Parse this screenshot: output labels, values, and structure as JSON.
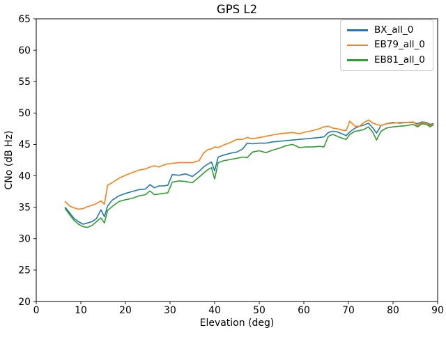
{
  "figure": {
    "background": "#ffffff",
    "text_color": "#000000",
    "spine_color": "#000000",
    "legend_border_color": "#cccccc"
  },
  "chart_data": {
    "type": "line",
    "title": "GPS L2",
    "xlabel": "Elevation (deg)",
    "ylabel": "CNo (dB Hz)",
    "xlim": [
      0,
      90
    ],
    "ylim": [
      20,
      65
    ],
    "xticks": [
      0,
      10,
      20,
      30,
      40,
      50,
      60,
      70,
      80,
      90
    ],
    "yticks": [
      20,
      25,
      30,
      35,
      40,
      45,
      50,
      55,
      60,
      65
    ],
    "grid": false,
    "legend_position": "upper right",
    "x": [
      6.5,
      7.5,
      8.5,
      9.5,
      10.5,
      11.5,
      12.5,
      13.5,
      14.5,
      15.3,
      16,
      17,
      18.5,
      20,
      21.5,
      23,
      24.5,
      25.5,
      26.5,
      27.5,
      28.5,
      29.5,
      30.5,
      32,
      33.5,
      35,
      36.5,
      37.5,
      38.5,
      39.3,
      40,
      40.8,
      42,
      43.5,
      45,
      46.3,
      47.3,
      48.5,
      50,
      51.5,
      53,
      54.5,
      56,
      57.5,
      59,
      60.5,
      62,
      63.5,
      64.5,
      65.5,
      66.5,
      67.5,
      68.5,
      69.5,
      70.3,
      71.5,
      72.5,
      73.5,
      74.5,
      75.5,
      76.3,
      77.3,
      78.5,
      80,
      81.5,
      83,
      84.5,
      85.5,
      86.5,
      87.5,
      88.3,
      89
    ],
    "series": [
      {
        "name": "BX_all_0",
        "color": "#1f77b4",
        "values": [
          35.0,
          34.1,
          33.2,
          32.7,
          32.3,
          32.5,
          32.7,
          33.2,
          34.6,
          33.5,
          35.2,
          36.1,
          36.8,
          37.2,
          37.5,
          37.8,
          37.9,
          38.6,
          38.1,
          38.4,
          38.4,
          38.5,
          40.2,
          40.1,
          40.3,
          39.9,
          40.7,
          41.4,
          41.9,
          42.2,
          40.8,
          43.0,
          43.3,
          43.6,
          43.8,
          44.3,
          45.2,
          45.1,
          45.2,
          45.2,
          45.4,
          45.5,
          45.6,
          45.7,
          45.8,
          45.9,
          46.0,
          46.1,
          46.2,
          46.9,
          47.1,
          47.0,
          46.7,
          46.4,
          47.0,
          47.6,
          47.9,
          48.1,
          48.4,
          47.6,
          46.8,
          48.0,
          48.3,
          48.5,
          48.4,
          48.5,
          48.5,
          48.3,
          48.6,
          48.5,
          48.2,
          48.3
        ]
      },
      {
        "name": "EB79_all_0",
        "color": "#ff7f0e",
        "values": [
          35.9,
          35.2,
          34.9,
          34.7,
          34.8,
          35.1,
          35.3,
          35.6,
          36.0,
          35.5,
          38.5,
          38.9,
          39.6,
          40.1,
          40.5,
          40.9,
          41.1,
          41.4,
          41.6,
          41.4,
          41.7,
          41.9,
          42.0,
          42.1,
          42.1,
          42.1,
          42.4,
          43.6,
          44.2,
          44.3,
          44.6,
          44.5,
          44.9,
          45.3,
          45.8,
          45.8,
          46.1,
          45.9,
          46.1,
          46.3,
          46.5,
          46.7,
          46.8,
          46.9,
          46.7,
          47.0,
          47.2,
          47.5,
          47.8,
          47.9,
          47.6,
          47.5,
          47.3,
          47.2,
          48.7,
          47.9,
          47.9,
          48.5,
          48.9,
          48.4,
          48.2,
          48.0,
          48.3,
          48.4,
          48.5,
          48.5,
          48.6,
          48.0,
          48.5,
          48.4,
          48.0,
          48.2
        ]
      },
      {
        "name": "EB81_all_0",
        "color": "#2ca02c",
        "values": [
          34.8,
          33.8,
          32.9,
          32.3,
          31.9,
          31.8,
          32.1,
          32.7,
          33.3,
          32.5,
          34.5,
          35.1,
          35.9,
          36.2,
          36.4,
          36.8,
          37.0,
          37.6,
          37.0,
          37.1,
          37.2,
          37.3,
          39.0,
          39.2,
          39.1,
          38.9,
          39.8,
          40.4,
          41.0,
          41.3,
          39.5,
          42.1,
          42.4,
          42.6,
          42.8,
          43.0,
          42.9,
          43.8,
          44.0,
          43.7,
          44.1,
          44.4,
          44.8,
          45.0,
          44.5,
          44.6,
          44.6,
          44.7,
          44.6,
          46.3,
          46.6,
          46.3,
          46.0,
          45.8,
          46.6,
          47.1,
          47.2,
          47.4,
          47.8,
          46.9,
          45.7,
          47.1,
          47.6,
          47.8,
          47.9,
          48.0,
          48.2,
          47.8,
          48.3,
          48.2,
          47.8,
          48.1
        ]
      }
    ]
  }
}
